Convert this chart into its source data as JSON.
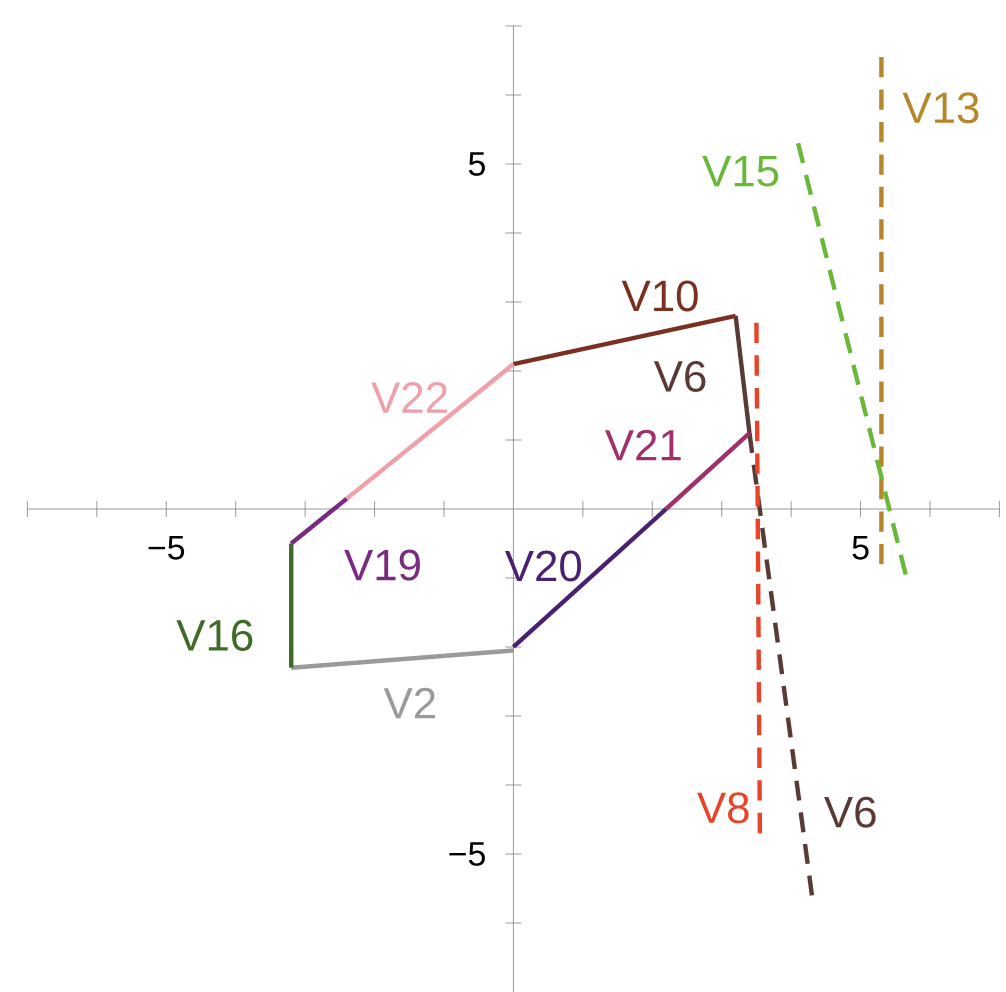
{
  "chart_data": {
    "type": "line",
    "xlim": [
      -7,
      7
    ],
    "ylim": [
      -7,
      7
    ],
    "xticks": [
      {
        "value": -7,
        "label": null
      },
      {
        "value": -6,
        "label": null
      },
      {
        "value": -5,
        "label": "−5"
      },
      {
        "value": -4,
        "label": null
      },
      {
        "value": -3,
        "label": null
      },
      {
        "value": -2,
        "label": null
      },
      {
        "value": -1,
        "label": null
      },
      {
        "value": 1,
        "label": null
      },
      {
        "value": 2,
        "label": null
      },
      {
        "value": 3,
        "label": null
      },
      {
        "value": 4,
        "label": null
      },
      5,
      {
        "value": 6,
        "label": null
      },
      {
        "value": 7,
        "label": null
      }
    ],
    "yticks": [
      {
        "value": -6,
        "label": null
      },
      {
        "value": -5,
        "label": "−5"
      },
      {
        "value": -4,
        "label": null
      },
      {
        "value": -3,
        "label": null
      },
      {
        "value": -2,
        "label": null
      },
      {
        "value": -1,
        "label": null
      },
      {
        "value": 1,
        "label": null
      },
      {
        "value": 2,
        "label": null
      },
      {
        "value": 3,
        "label": null
      },
      {
        "value": 4,
        "label": null
      },
      5,
      {
        "value": 6,
        "label": null
      },
      {
        "value": 7,
        "label": null
      }
    ],
    "series": [
      {
        "name": "V2",
        "color": "#9a9a9a",
        "x": [
          -3.2,
          0
        ],
        "values": [
          -2.3,
          -2.05
        ],
        "line_style": "solid"
      },
      {
        "name": "V6",
        "color": "#5a3a35",
        "x": [
          3.2,
          3.4
        ],
        "values": [
          2.8,
          1.1
        ],
        "line_style": "solid"
      },
      {
        "name": "V6",
        "color": "#5a3a35",
        "x": [
          3.4,
          4.3
        ],
        "values": [
          1.1,
          -5.6
        ],
        "line_style": "dashed"
      },
      {
        "name": "V8",
        "color": "#e8442a",
        "x": [
          3.5,
          3.55
        ],
        "values": [
          2.7,
          -4.7
        ],
        "line_style": "dashed"
      },
      {
        "name": "V10",
        "color": "#7a3020",
        "x": [
          0,
          3.2
        ],
        "values": [
          2.1,
          2.8
        ],
        "line_style": "solid"
      },
      {
        "name": "V13",
        "color": "#b8862a",
        "x": [
          5.3,
          5.3
        ],
        "values": [
          6.55,
          -0.8
        ],
        "line_style": "dashed"
      },
      {
        "name": "V15",
        "color": "#6ab83a",
        "x": [
          4.1,
          5.65
        ],
        "values": [
          5.3,
          -0.95
        ],
        "line_style": "dashed"
      },
      {
        "name": "V16",
        "color": "#3f6a2a",
        "x": [
          -3.2,
          -3.2
        ],
        "values": [
          -0.5,
          -2.3
        ],
        "line_style": "solid"
      },
      {
        "name": "V19",
        "color": "#7a2a80",
        "x": [
          -3.2,
          -2.4
        ],
        "values": [
          -0.5,
          0.15
        ],
        "line_style": "solid"
      },
      {
        "name": "V20",
        "color": "#4a2070",
        "x": [
          2.2,
          0
        ],
        "values": [
          0,
          -2
        ],
        "line_style": "solid"
      },
      {
        "name": "V21",
        "color": "#a0306a",
        "x": [
          3.4,
          2.2
        ],
        "values": [
          1.1,
          0
        ],
        "line_style": "solid"
      },
      {
        "name": "V22",
        "color": "#f0a0a8",
        "x": [
          -2.4,
          0
        ],
        "values": [
          0.15,
          2.1
        ],
        "line_style": "solid"
      }
    ]
  }
}
